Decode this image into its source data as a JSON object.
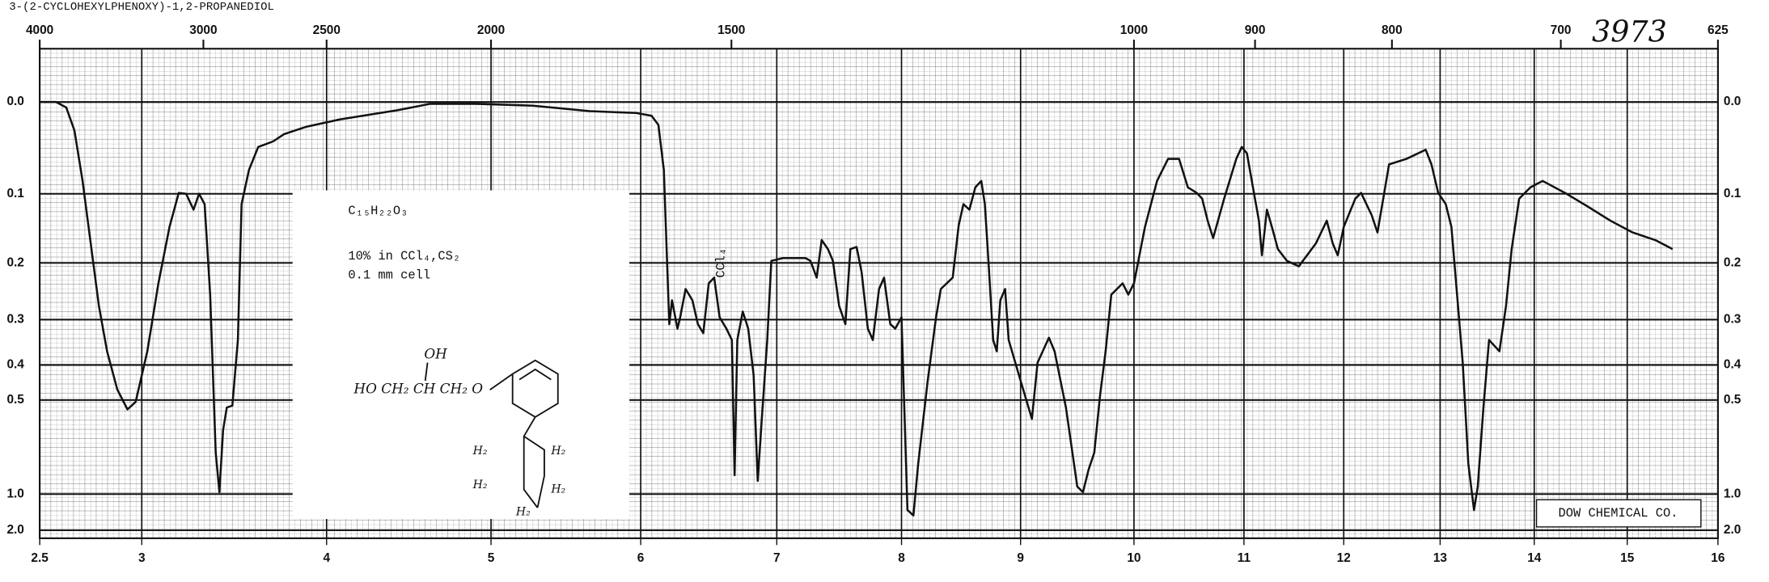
{
  "chart_data": {
    "type": "line",
    "title": "3-(2-CYCLOHEXYLPHENOXY)-1,2-PROPANEDIOL",
    "catalog_number": "3973",
    "source": "DOW CHEMICAL CO.",
    "notes": [
      "C₁₅H₂₂O₃",
      "10% in CCl₄,CS₂",
      "0.1 mm cell"
    ],
    "annotations": [
      "CCl₄"
    ],
    "structure": {
      "hydroxyl": "OH",
      "chain": "HO CH₂ CH CH₂ O",
      "ring_labels": [
        "H₂",
        "H₂",
        "H₂",
        "H₂",
        "H₂"
      ]
    },
    "x": [
      2.5,
      2.58,
      2.63,
      2.67,
      2.71,
      2.75,
      2.79,
      2.83,
      2.88,
      2.93,
      2.97,
      3.03,
      3.09,
      3.15,
      3.2,
      3.24,
      3.28,
      3.31,
      3.34,
      3.37,
      3.4,
      3.42,
      3.44,
      3.46,
      3.49,
      3.52,
      3.54,
      3.58,
      3.63,
      3.71,
      3.77,
      3.89,
      4.08,
      4.43,
      4.63,
      4.91,
      5.28,
      5.66,
      5.97,
      6.08,
      6.13,
      6.17,
      6.21,
      6.23,
      6.27,
      6.29,
      6.33,
      6.38,
      6.42,
      6.46,
      6.5,
      6.54,
      6.58,
      6.63,
      6.67,
      6.69,
      6.71,
      6.75,
      6.79,
      6.83,
      6.86,
      6.89,
      6.93,
      6.96,
      7.05,
      7.23,
      7.27,
      7.32,
      7.36,
      7.41,
      7.45,
      7.5,
      7.55,
      7.59,
      7.64,
      7.68,
      7.73,
      7.77,
      7.82,
      7.86,
      7.91,
      7.95,
      8.0,
      8.05,
      8.1,
      8.14,
      8.22,
      8.29,
      8.33,
      8.43,
      8.48,
      8.52,
      8.57,
      8.62,
      8.67,
      8.7,
      8.73,
      8.77,
      8.8,
      8.83,
      8.87,
      8.9,
      9.0,
      9.1,
      9.15,
      9.25,
      9.3,
      9.4,
      9.5,
      9.55,
      9.6,
      9.65,
      9.7,
      9.75,
      9.8,
      9.9,
      9.95,
      10.0,
      10.1,
      10.21,
      10.31,
      10.41,
      10.49,
      10.57,
      10.62,
      10.67,
      10.72,
      10.82,
      10.93,
      10.98,
      11.03,
      11.09,
      11.15,
      11.18,
      11.23,
      11.28,
      11.34,
      11.43,
      11.55,
      11.72,
      11.83,
      11.89,
      11.94,
      12.0,
      12.12,
      12.18,
      12.29,
      12.35,
      12.41,
      12.47,
      12.65,
      12.85,
      12.91,
      12.98,
      13.06,
      13.12,
      13.18,
      13.24,
      13.3,
      13.36,
      13.4,
      13.46,
      13.52,
      13.63,
      13.7,
      13.76,
      13.84,
      13.96,
      14.09,
      14.33,
      14.57,
      14.82,
      15.06,
      15.31,
      15.5
    ],
    "series": [
      {
        "color": "#111111",
        "values": [
          0,
          0,
          0.006,
          0.031,
          0.086,
          0.172,
          0.276,
          0.37,
          0.47,
          0.55,
          0.51,
          0.37,
          0.236,
          0.148,
          0.099,
          0.1,
          0.123,
          0.1,
          0.115,
          0.256,
          0.78,
          0.99,
          0.66,
          0.54,
          0.53,
          0.345,
          0.115,
          0.074,
          0.049,
          0.043,
          0.035,
          0.027,
          0.019,
          0.009,
          0.002,
          0.002,
          0.004,
          0.01,
          0.012,
          0.015,
          0.025,
          0.074,
          0.31,
          0.266,
          0.32,
          0.296,
          0.246,
          0.266,
          0.31,
          0.33,
          0.236,
          0.226,
          0.296,
          0.32,
          0.345,
          0.9,
          0.345,
          0.286,
          0.32,
          0.43,
          0.93,
          0.6,
          0.345,
          0.197,
          0.193,
          0.193,
          0.197,
          0.226,
          0.167,
          0.18,
          0.197,
          0.276,
          0.31,
          0.18,
          0.177,
          0.216,
          0.32,
          0.345,
          0.246,
          0.226,
          0.31,
          0.32,
          0.296,
          1.44,
          1.59,
          0.84,
          0.445,
          0.296,
          0.246,
          0.226,
          0.146,
          0.115,
          0.123,
          0.093,
          0.086,
          0.115,
          0.197,
          0.345,
          0.37,
          0.266,
          0.246,
          0.345,
          0.445,
          0.6,
          0.395,
          0.34,
          0.37,
          0.54,
          0.96,
          0.99,
          0.87,
          0.78,
          0.49,
          0.37,
          0.256,
          0.236,
          0.256,
          0.236,
          0.148,
          0.086,
          0.062,
          0.062,
          0.093,
          0.099,
          0.107,
          0.139,
          0.164,
          0.107,
          0.062,
          0.049,
          0.056,
          0.093,
          0.139,
          0.189,
          0.123,
          0.148,
          0.18,
          0.197,
          0.206,
          0.172,
          0.139,
          0.172,
          0.189,
          0.148,
          0.107,
          0.099,
          0.131,
          0.156,
          0.107,
          0.068,
          0.062,
          0.052,
          0.068,
          0.099,
          0.115,
          0.148,
          0.256,
          0.395,
          0.84,
          1.44,
          0.96,
          0.54,
          0.345,
          0.37,
          0.276,
          0.18,
          0.107,
          0.093,
          0.086,
          0.099,
          0.118,
          0.139,
          0.156,
          0.167,
          0.18
        ]
      }
    ],
    "xlim": [
      2.5,
      16
    ],
    "xticks": [
      2.5,
      3,
      4,
      5,
      6,
      7,
      8,
      9,
      10,
      11,
      12,
      13,
      14,
      15,
      16
    ],
    "x2ticks": [
      4000,
      3000,
      2500,
      2000,
      1500,
      1000,
      900,
      800,
      700,
      625
    ],
    "ylim": [
      0,
      2
    ],
    "yticks": [
      {
        "value": 0,
        "label": "0.0"
      },
      0.1,
      0.2,
      0.3,
      0.4,
      0.5,
      {
        "value": 1,
        "label": "1.0"
      },
      {
        "value": 2,
        "label": "2.0"
      }
    ],
    "grid": true
  }
}
